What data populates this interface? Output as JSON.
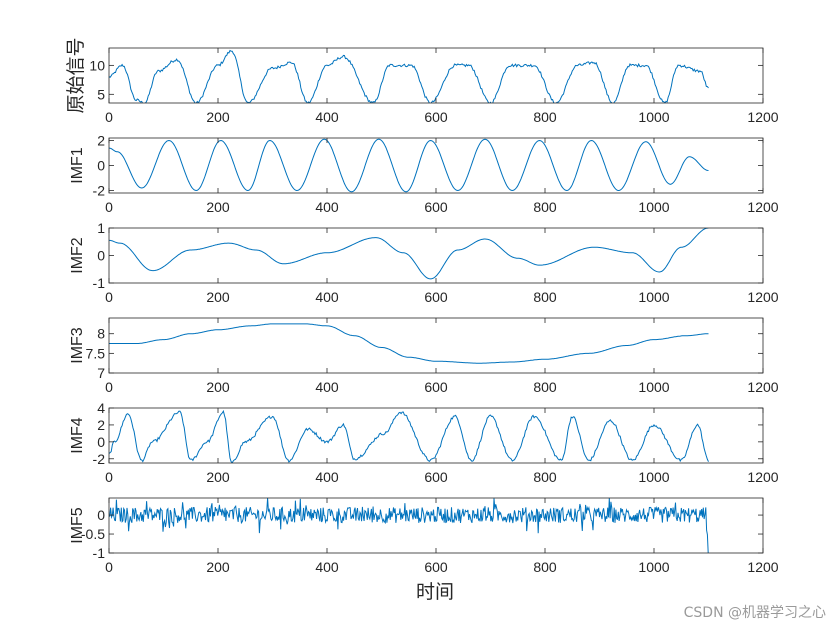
{
  "chart_data": [
    {
      "type": "line",
      "ylabel": "原始信号",
      "xlim": [
        0,
        1200
      ],
      "ylim": [
        3.5,
        13
      ],
      "xticks": [
        "0",
        "200",
        "400",
        "600",
        "800",
        "1000",
        "1200"
      ],
      "yticks": [
        "5",
        "10"
      ],
      "x": [
        0,
        25,
        50,
        65,
        90,
        125,
        160,
        200,
        225,
        255,
        300,
        335,
        365,
        400,
        430,
        485,
        515,
        555,
        590,
        635,
        660,
        700,
        735,
        780,
        820,
        860,
        890,
        925,
        955,
        985,
        1020,
        1045,
        1085,
        1100
      ],
      "values": [
        8,
        10,
        4,
        3.5,
        9,
        11,
        3.5,
        10,
        12.5,
        3.5,
        9.5,
        10.5,
        3.5,
        10,
        11.5,
        3.5,
        10,
        10,
        3.5,
        10,
        10,
        3.5,
        10,
        10,
        3.5,
        10,
        10.5,
        3.5,
        10,
        10,
        3.5,
        10,
        9,
        6
      ]
    },
    {
      "type": "line",
      "ylabel": "IMF1",
      "xlim": [
        0,
        1200
      ],
      "ylim": [
        -2.2,
        2.2
      ],
      "xticks": [
        "0",
        "200",
        "400",
        "600",
        "800",
        "1000",
        "1200"
      ],
      "yticks": [
        "-2",
        "0",
        "2"
      ],
      "x": [
        0,
        15,
        60,
        110,
        160,
        205,
        255,
        295,
        345,
        395,
        445,
        495,
        545,
        590,
        640,
        690,
        740,
        790,
        840,
        885,
        935,
        985,
        1030,
        1065,
        1100
      ],
      "values": [
        1.4,
        1.1,
        -1.8,
        2.0,
        -2.0,
        2.0,
        -2.0,
        2.0,
        -2.0,
        2.1,
        -2.1,
        2.1,
        -2.1,
        2.0,
        -2.0,
        2.1,
        -2.0,
        2.0,
        -2.0,
        2.0,
        -2.0,
        1.9,
        -1.5,
        0.7,
        -0.4
      ]
    },
    {
      "type": "line",
      "ylabel": "IMF2",
      "xlim": [
        0,
        1200
      ],
      "ylim": [
        -1,
        1
      ],
      "xticks": [
        "0",
        "200",
        "400",
        "600",
        "800",
        "1000",
        "1200"
      ],
      "yticks": [
        "-1",
        "0",
        "1"
      ],
      "x": [
        0,
        20,
        80,
        150,
        220,
        270,
        320,
        400,
        490,
        540,
        590,
        640,
        690,
        750,
        790,
        890,
        960,
        1010,
        1050,
        1100
      ],
      "values": [
        0.55,
        0.45,
        -0.55,
        0.2,
        0.45,
        0.2,
        -0.3,
        0.1,
        0.65,
        0.1,
        -0.85,
        0.2,
        0.6,
        -0.1,
        -0.35,
        0.3,
        0.1,
        -0.6,
        0.3,
        1.0
      ]
    },
    {
      "type": "line",
      "ylabel": "IMF3",
      "xlim": [
        0,
        1200
      ],
      "ylim": [
        7,
        8.4
      ],
      "xticks": [
        "0",
        "200",
        "400",
        "600",
        "800",
        "1000",
        "1200"
      ],
      "yticks": [
        "7",
        "7.5",
        "8"
      ],
      "x": [
        0,
        50,
        100,
        150,
        200,
        260,
        300,
        360,
        400,
        450,
        500,
        550,
        600,
        680,
        740,
        800,
        880,
        950,
        1000,
        1060,
        1100
      ],
      "values": [
        7.75,
        7.75,
        7.85,
        8.0,
        8.1,
        8.2,
        8.25,
        8.25,
        8.2,
        7.95,
        7.65,
        7.4,
        7.3,
        7.25,
        7.28,
        7.35,
        7.5,
        7.7,
        7.85,
        7.95,
        8.0
      ]
    },
    {
      "type": "line",
      "ylabel": "IMF4",
      "xlim": [
        0,
        1200
      ],
      "ylim": [
        -2.5,
        4
      ],
      "xticks": [
        "0",
        "200",
        "400",
        "600",
        "800",
        "1000",
        "1200"
      ],
      "yticks": [
        "-2",
        "0",
        "2",
        "4"
      ],
      "x": [
        0,
        10,
        35,
        60,
        80,
        130,
        150,
        180,
        210,
        225,
        250,
        300,
        330,
        365,
        400,
        430,
        450,
        505,
        535,
        590,
        635,
        665,
        700,
        740,
        780,
        830,
        850,
        880,
        920,
        960,
        1000,
        1050,
        1080,
        1100
      ],
      "values": [
        -1.5,
        0,
        3.3,
        -2.2,
        0,
        3.5,
        -2.2,
        0,
        3.5,
        -2.5,
        0,
        3.0,
        -2.2,
        1.5,
        0,
        2.0,
        -2.0,
        1.0,
        3.5,
        -2.2,
        3.0,
        -2.2,
        3.0,
        -2.2,
        3.0,
        -2.2,
        3.0,
        -2.2,
        2.5,
        -2.2,
        2.0,
        -2.2,
        2.0,
        -2.2
      ]
    },
    {
      "type": "line",
      "ylabel": "IMF5",
      "xlim": [
        0,
        1200
      ],
      "ylim": [
        -1,
        0.45
      ],
      "xticks": [
        "0",
        "200",
        "400",
        "600",
        "800",
        "1000",
        "1200"
      ],
      "yticks": [
        "-1",
        "-0.5",
        "0"
      ],
      "x": [
        0,
        1095,
        1100
      ],
      "values": [
        0.0,
        0.0,
        -1.0
      ],
      "noise_amplitude": 0.3
    }
  ],
  "xlabel": "时间",
  "watermark": "CSDN @机器学习之心",
  "colors": {
    "line": "#0072bd",
    "axis": "#262626"
  }
}
